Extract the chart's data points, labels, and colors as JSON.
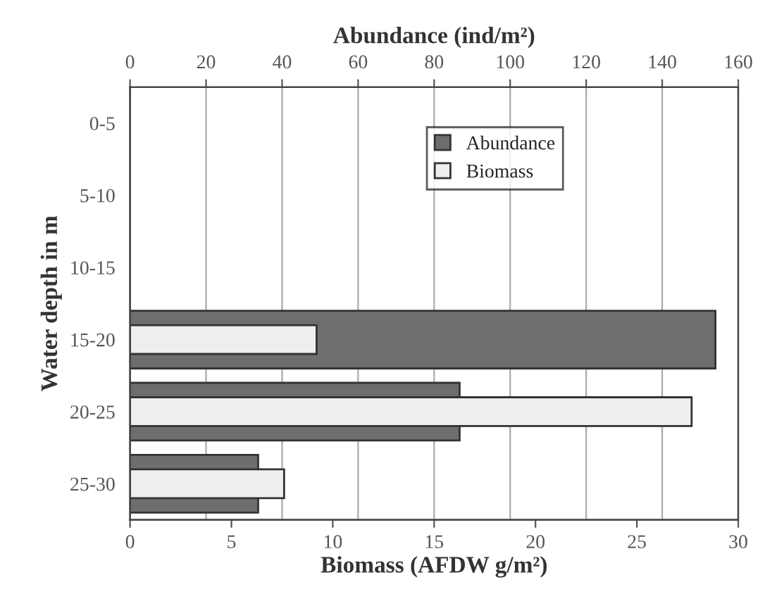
{
  "chart_data": {
    "type": "bar",
    "orientation": "horizontal",
    "categories": [
      "0-5",
      "5-10",
      "10-15",
      "15-20",
      "20-25",
      "25-30"
    ],
    "series": [
      {
        "name": "Abundance",
        "color": "#6e6e6e",
        "axis": "x2",
        "values": [
          null,
          null,
          null,
          154,
          86.7,
          33.7
        ]
      },
      {
        "name": "Biomass",
        "color": "#eeeeee",
        "values": [
          null,
          null,
          null,
          9.2,
          27.7,
          7.6
        ]
      }
    ],
    "xlabel": "Biomass (AFDW g/m²)",
    "x2label": "Abundance (ind/m²)",
    "ylabel": "Water depth in m",
    "xlim": [
      0,
      30
    ],
    "xticks": [
      0,
      5,
      10,
      15,
      20,
      25,
      30
    ],
    "x2lim": [
      0,
      160
    ],
    "x2ticks": [
      0,
      20,
      40,
      60,
      80,
      100,
      120,
      140,
      160
    ],
    "grid": "x",
    "legend": "top"
  }
}
